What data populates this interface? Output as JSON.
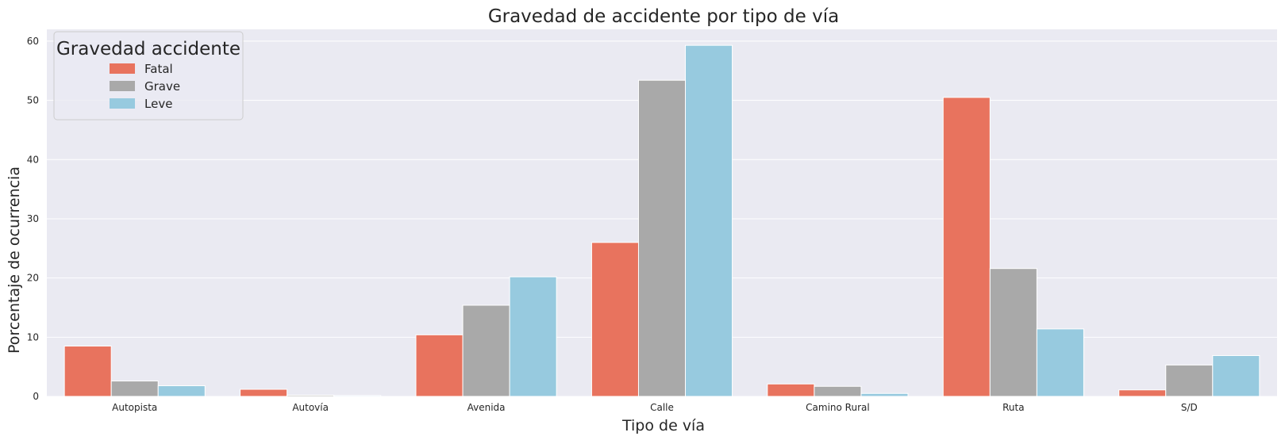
{
  "chart_data": {
    "type": "bar",
    "title": "Gravedad de accidente por tipo de vía",
    "xlabel": "Tipo de vía",
    "ylabel": "Porcentaje de ocurrencia",
    "categories": [
      "Autopista",
      "Autovía",
      "Avenida",
      "Calle",
      "Camino Rural",
      "Ruta",
      "S/D"
    ],
    "series": [
      {
        "name": "Fatal",
        "color": "#e8735e",
        "values": [
          8.5,
          1.2,
          10.4,
          26.0,
          2.1,
          50.5,
          1.1
        ]
      },
      {
        "name": "Grave",
        "color": "#a9a9a9",
        "values": [
          2.6,
          0.2,
          15.4,
          53.4,
          1.7,
          21.6,
          5.3
        ]
      },
      {
        "name": "Leve",
        "color": "#97cadf",
        "values": [
          1.8,
          0.15,
          20.2,
          59.3,
          0.5,
          11.4,
          6.9
        ]
      }
    ],
    "ylim": [
      0,
      62
    ],
    "yticks": [
      0,
      10,
      20,
      30,
      40,
      50,
      60
    ],
    "grid": true,
    "legend": {
      "title": "Gravedad accidente",
      "position": "top-left"
    }
  }
}
